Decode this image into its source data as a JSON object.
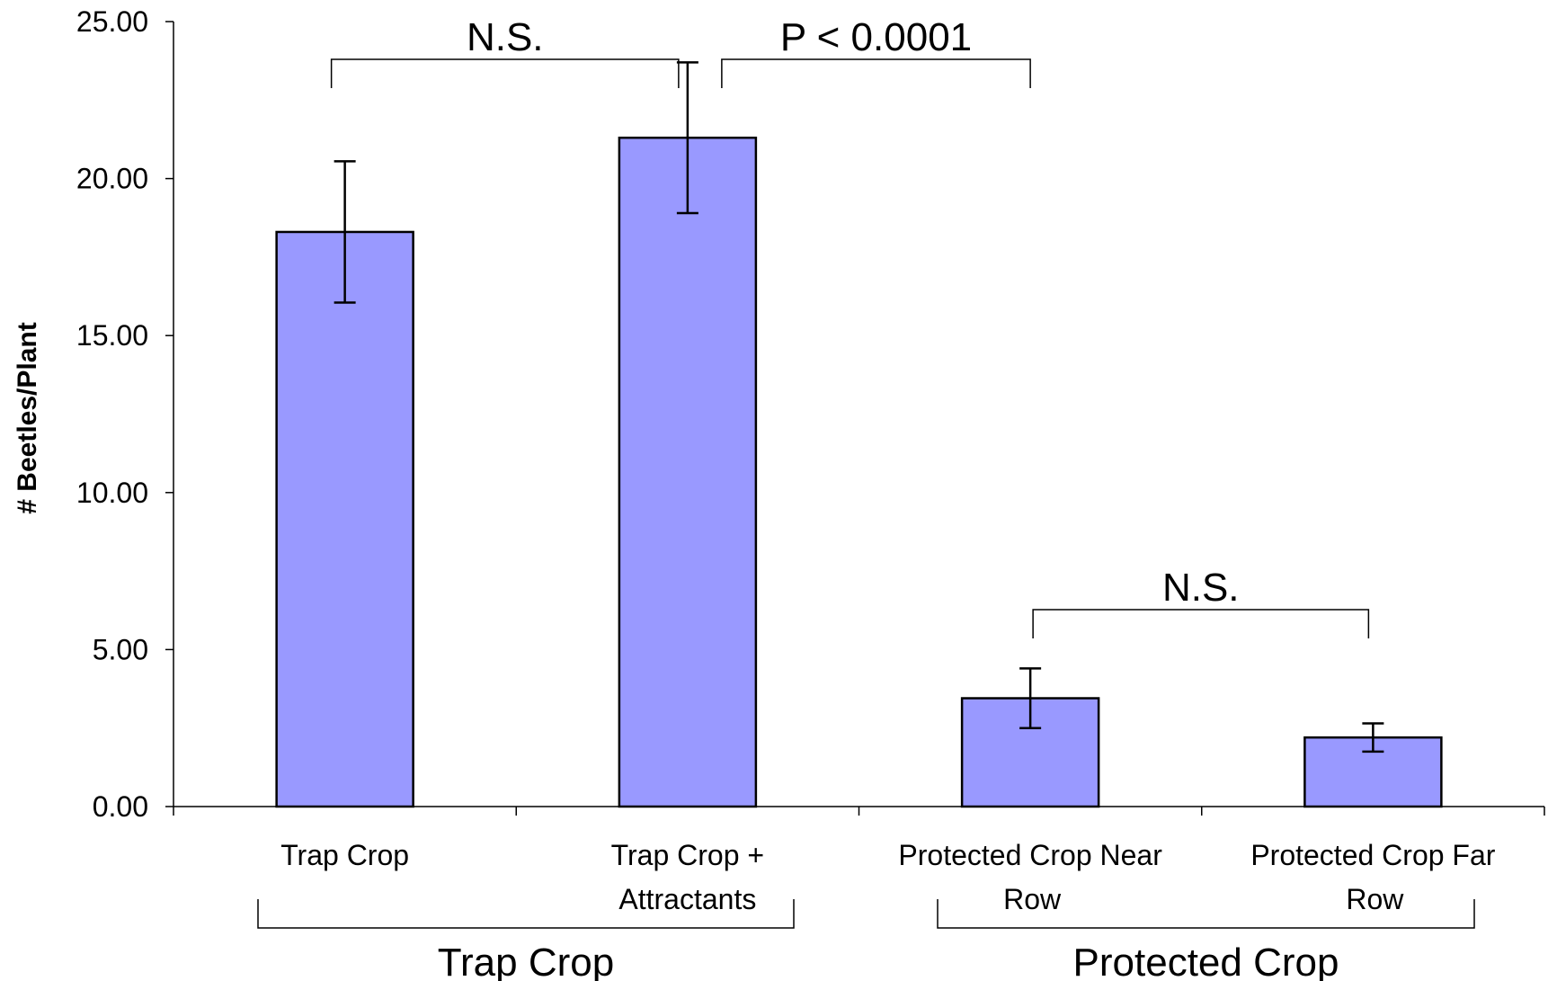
{
  "chart_data": {
    "type": "bar",
    "title": "",
    "xlabel": "",
    "ylabel": "# Beetles/Plant",
    "ylim": [
      0,
      25
    ],
    "yticks": [
      "0.00",
      "5.00",
      "10.00",
      "15.00",
      "20.00",
      "25.00"
    ],
    "grid": false,
    "legend": "none",
    "bar_color": "#9999ff",
    "bar_edge_color": "#000000",
    "categories": [
      [
        "Trap Crop"
      ],
      [
        "Trap Crop +",
        "Attractants"
      ],
      [
        "Protected Crop Near",
        "Row"
      ],
      [
        "Protected Crop Far",
        "Row"
      ]
    ],
    "values": [
      18.3,
      21.3,
      3.45,
      2.2
    ],
    "errors": [
      2.25,
      2.4,
      0.95,
      0.45
    ],
    "groups": [
      {
        "label": "Trap Crop",
        "categories": [
          0,
          1
        ]
      },
      {
        "label": "Protected Crop",
        "categories": [
          2,
          3
        ]
      }
    ],
    "annotations": [
      {
        "text": "N.S.",
        "between": [
          0,
          1
        ]
      },
      {
        "text": "P < 0.0001",
        "between": [
          1,
          2
        ]
      },
      {
        "text": "N.S.",
        "between": [
          2,
          3
        ]
      }
    ]
  }
}
